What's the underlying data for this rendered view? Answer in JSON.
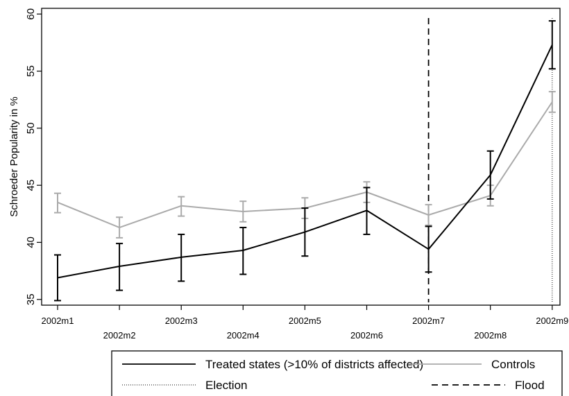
{
  "chart_data": {
    "type": "line",
    "title": "",
    "xlabel": "",
    "ylabel": "Schroeder Popularity in %",
    "x_categories": [
      "2002m1",
      "2002m2",
      "2002m3",
      "2002m4",
      "2002m5",
      "2002m6",
      "2002m7",
      "2002m8",
      "2002m9"
    ],
    "ylim": [
      34.5,
      60.5
    ],
    "y_ticks": [
      35,
      40,
      45,
      50,
      55,
      60
    ],
    "grid": false,
    "legend_position": "bottom",
    "series": [
      {
        "name": "Treated states (>10% of districts affected)",
        "color": "#000000",
        "values": [
          36.9,
          37.9,
          38.7,
          39.3,
          40.9,
          42.8,
          39.4,
          45.9,
          57.3
        ],
        "ci_low": [
          34.9,
          35.8,
          36.6,
          37.2,
          38.8,
          40.7,
          37.4,
          43.8,
          55.2
        ],
        "ci_high": [
          38.9,
          39.9,
          40.7,
          41.3,
          43.0,
          44.8,
          41.4,
          48.0,
          59.4
        ]
      },
      {
        "name": "Controls",
        "color": "#aaaaaa",
        "values": [
          43.5,
          41.3,
          43.2,
          42.7,
          43.0,
          44.4,
          42.4,
          44.1,
          52.3
        ],
        "ci_low": [
          42.6,
          40.4,
          42.3,
          41.8,
          42.1,
          43.5,
          41.5,
          43.2,
          51.4
        ],
        "ci_high": [
          44.3,
          42.2,
          44.0,
          43.6,
          43.9,
          45.3,
          43.3,
          45.0,
          53.2
        ]
      }
    ],
    "vlines": [
      {
        "name": "Flood",
        "x": "2002m7",
        "style": "dashed",
        "color": "#000000"
      },
      {
        "name": "Election",
        "x": "2002m9",
        "style": "dotted",
        "color": "#000000"
      }
    ],
    "legend": [
      {
        "label": "Treated states (>10% of districts affected)",
        "style": "solid",
        "color": "#000000"
      },
      {
        "label": "Controls",
        "style": "solid",
        "color": "#aaaaaa"
      },
      {
        "label": "Election",
        "style": "dotted",
        "color": "#000000"
      },
      {
        "label": "Flood",
        "style": "dashed",
        "color": "#000000"
      }
    ]
  }
}
